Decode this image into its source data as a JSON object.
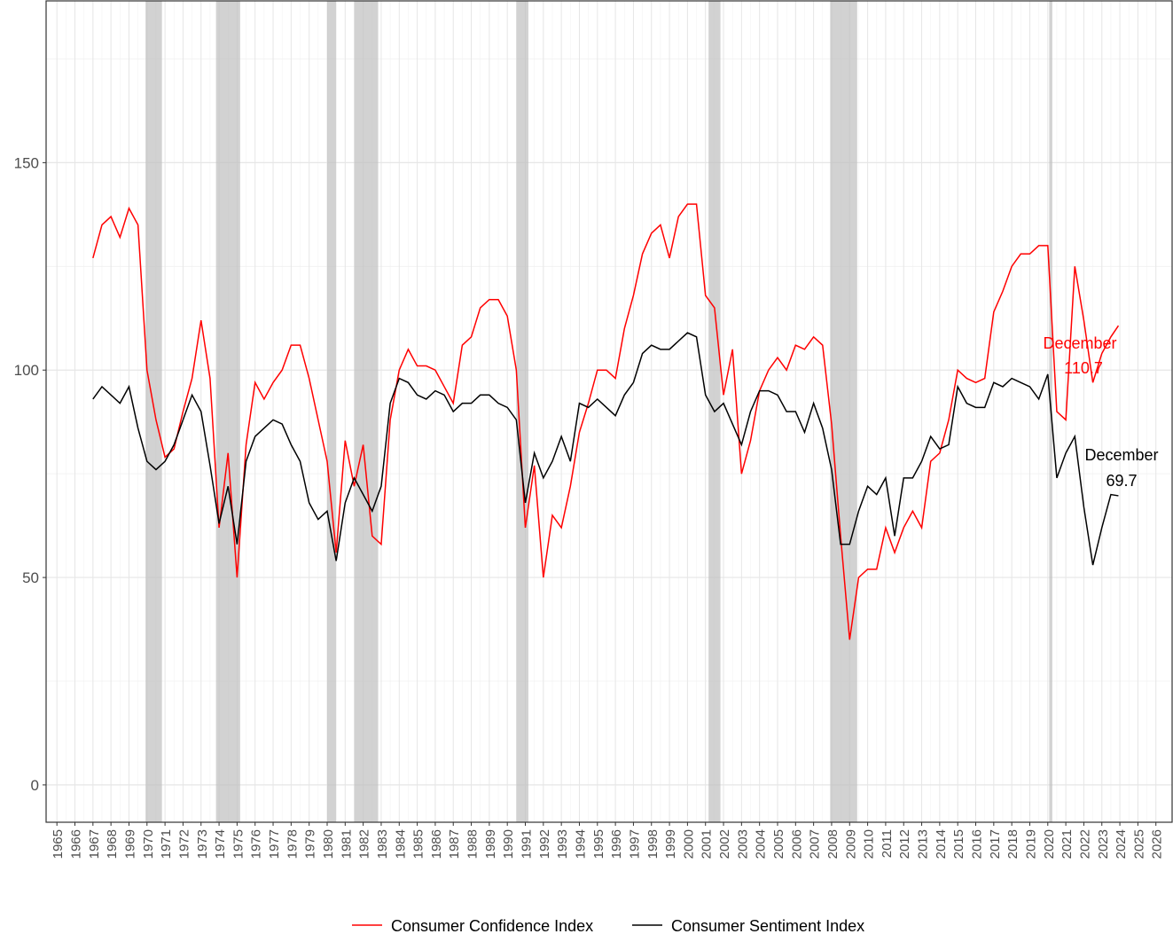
{
  "chart_data": {
    "type": "line",
    "x": [
      1967.0,
      1967.5,
      1968.0,
      1968.5,
      1969.0,
      1969.5,
      1970.0,
      1970.5,
      1971.0,
      1971.5,
      1972.0,
      1972.5,
      1973.0,
      1973.5,
      1974.0,
      1974.5,
      1975.0,
      1975.5,
      1976.0,
      1976.5,
      1977.0,
      1977.5,
      1978.0,
      1978.5,
      1979.0,
      1979.5,
      1980.0,
      1980.5,
      1981.0,
      1981.5,
      1982.0,
      1982.5,
      1983.0,
      1983.5,
      1984.0,
      1984.5,
      1985.0,
      1985.5,
      1986.0,
      1986.5,
      1987.0,
      1987.5,
      1988.0,
      1988.5,
      1989.0,
      1989.5,
      1990.0,
      1990.5,
      1991.0,
      1991.5,
      1992.0,
      1992.5,
      1993.0,
      1993.5,
      1994.0,
      1994.5,
      1995.0,
      1995.5,
      1996.0,
      1996.5,
      1997.0,
      1997.5,
      1998.0,
      1998.5,
      1999.0,
      1999.5,
      2000.0,
      2000.5,
      2001.0,
      2001.5,
      2002.0,
      2002.5,
      2003.0,
      2003.5,
      2004.0,
      2004.5,
      2005.0,
      2005.5,
      2006.0,
      2006.5,
      2007.0,
      2007.5,
      2008.0,
      2008.5,
      2009.0,
      2009.5,
      2010.0,
      2010.5,
      2011.0,
      2011.5,
      2012.0,
      2012.5,
      2013.0,
      2013.5,
      2014.0,
      2014.5,
      2015.0,
      2015.5,
      2016.0,
      2016.5,
      2017.0,
      2017.5,
      2018.0,
      2018.5,
      2019.0,
      2019.5,
      2020.0,
      2020.5,
      2021.0,
      2021.5,
      2022.0,
      2022.5,
      2023.0,
      2023.5,
      2023.92
    ],
    "series": [
      {
        "name": "Consumer Confidence Index",
        "color": "#ff0000",
        "values": [
          127,
          135,
          137,
          132,
          139,
          135,
          100,
          88,
          79,
          81,
          90,
          98,
          112,
          98,
          62,
          80,
          50,
          82,
          97,
          93,
          97,
          100,
          106,
          106,
          98,
          88,
          78,
          56,
          83,
          72,
          82,
          60,
          58,
          88,
          100,
          105,
          101,
          101,
          100,
          96,
          92,
          106,
          108,
          115,
          117,
          117,
          113,
          100,
          62,
          77,
          50,
          65,
          62,
          72,
          85,
          92,
          100,
          100,
          98,
          110,
          118,
          128,
          133,
          135,
          127,
          137,
          140,
          140,
          118,
          115,
          94,
          105,
          75,
          83,
          95,
          100,
          103,
          100,
          106,
          105,
          108,
          106,
          87,
          60,
          35,
          50,
          52,
          52,
          62,
          56,
          62,
          66,
          62,
          78,
          80,
          88,
          100,
          98,
          97,
          98,
          114,
          119,
          125,
          128,
          128,
          130,
          130,
          90,
          88,
          125,
          112,
          97,
          104,
          108,
          110.7
        ]
      },
      {
        "name": "Consumer Sentiment Index",
        "color": "#000000",
        "values": [
          93,
          96,
          94,
          92,
          96,
          86,
          78,
          76,
          78,
          82,
          88,
          94,
          90,
          77,
          63,
          72,
          58,
          78,
          84,
          86,
          88,
          87,
          82,
          78,
          68,
          64,
          66,
          54,
          68,
          74,
          70,
          66,
          72,
          92,
          98,
          97,
          94,
          93,
          95,
          94,
          90,
          92,
          92,
          94,
          94,
          92,
          91,
          88,
          68,
          80,
          74,
          78,
          84,
          78,
          92,
          91,
          93,
          91,
          89,
          94,
          97,
          104,
          106,
          105,
          105,
          107,
          109,
          108,
          94,
          90,
          92,
          87,
          82,
          90,
          95,
          95,
          94,
          90,
          90,
          85,
          92,
          86,
          76,
          58,
          58,
          66,
          72,
          70,
          74,
          60,
          74,
          74,
          78,
          84,
          81,
          82,
          96,
          92,
          91,
          91,
          97,
          96,
          98,
          97,
          96,
          93,
          99,
          74,
          80,
          84,
          67,
          53,
          62,
          70,
          69.7
        ]
      }
    ],
    "recessions": [
      [
        1969.92,
        1970.83
      ],
      [
        1973.83,
        1975.17
      ],
      [
        1980.0,
        1980.5
      ],
      [
        1981.5,
        1982.83
      ],
      [
        1990.5,
        1991.17
      ],
      [
        2001.17,
        2001.83
      ],
      [
        2007.92,
        2009.42
      ],
      [
        2020.08,
        2020.25
      ]
    ],
    "annotations": [
      {
        "text": "December",
        "color": "#ff0000"
      },
      {
        "text": "110.7",
        "color": "#ff0000"
      },
      {
        "text": "December",
        "color": "#000000"
      },
      {
        "text": "69.7",
        "color": "#000000"
      }
    ],
    "xlim": [
      1964.4,
      2026.9
    ],
    "xticks": [
      1965,
      1966,
      1967,
      1968,
      1969,
      1970,
      1971,
      1972,
      1973,
      1974,
      1975,
      1976,
      1977,
      1978,
      1979,
      1980,
      1981,
      1982,
      1983,
      1984,
      1985,
      1986,
      1987,
      1988,
      1989,
      1990,
      1991,
      1992,
      1993,
      1994,
      1995,
      1996,
      1997,
      1998,
      1999,
      2000,
      2001,
      2002,
      2003,
      2004,
      2005,
      2006,
      2007,
      2008,
      2009,
      2010,
      2011,
      2012,
      2013,
      2014,
      2015,
      2016,
      2017,
      2018,
      2019,
      2020,
      2021,
      2022,
      2023,
      2024,
      2025,
      2026
    ],
    "ylim": [
      -9,
      189
    ],
    "yticks": [
      0,
      50,
      100,
      150
    ],
    "grid": true,
    "legend": "bottom"
  }
}
